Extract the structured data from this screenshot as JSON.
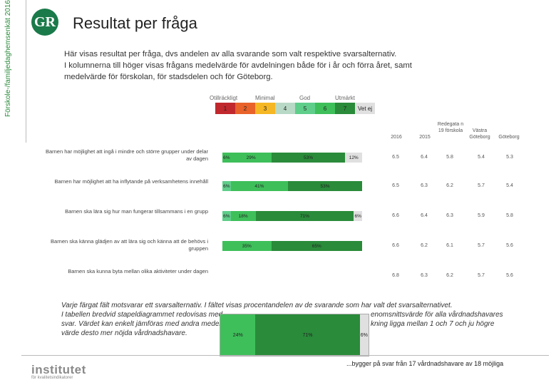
{
  "sidebar": {
    "vertical_title": "Förskole-/familjedaghemsenkät 2016"
  },
  "header": {
    "logo_text": "GR",
    "title": "Resultat per fråga"
  },
  "intro": [
    "Här visas resultat per fråga, dvs andelen av alla svarande som valt respektive svarsalternativ.",
    "I kolumnerna till höger visas frågans medelvärde för avdelningen både för i år och förra året, samt",
    "medelvärde för förskolan, för stadsdelen och för Göteborg."
  ],
  "legend": {
    "groups": [
      "Otillräckligt",
      "Minimal",
      "God",
      "Utmärkt"
    ],
    "items": [
      {
        "label": "1",
        "color": "#c0282d"
      },
      {
        "label": "2",
        "color": "#e8622a"
      },
      {
        "label": "3",
        "color": "#f5b724"
      },
      {
        "label": "4",
        "color": "#b8d9c6"
      },
      {
        "label": "5",
        "color": "#5fce8a"
      },
      {
        "label": "6",
        "color": "#3ebf5a"
      },
      {
        "label": "7",
        "color": "#2a8b3a"
      },
      {
        "label": "Vet ej",
        "color": "#e0e0e0"
      }
    ]
  },
  "columns": {
    "c2016": "2016",
    "c2015": "2015",
    "c_forskola": "Redegata n 19 förskola",
    "c_stadsdel": "Västra Göteborg",
    "c_goteborg": "Göteborg"
  },
  "questions": [
    {
      "label": "Barnen har möjlighet att ingå i mindre och större grupper under delar av dagen",
      "segments": [
        {
          "pct": 6,
          "text": "6%",
          "color": "#3ebf5a"
        },
        {
          "pct": 29,
          "text": "29%",
          "color": "#3ebf5a"
        },
        {
          "pct": 53,
          "text": "53%",
          "color": "#2a8b3a"
        },
        {
          "pct": 12,
          "text": "12%",
          "color": "#e0e0e0"
        }
      ],
      "values": [
        "6.5",
        "6.4",
        "5.8",
        "5.4",
        "5.3"
      ]
    },
    {
      "label": "Barnen har möjlighet att ha inflytande på verksamhetens innehåll",
      "segments": [
        {
          "pct": 6,
          "text": "6%",
          "color": "#5fce8a"
        },
        {
          "pct": 41,
          "text": "41%",
          "color": "#3ebf5a"
        },
        {
          "pct": 53,
          "text": "53%",
          "color": "#2a8b3a"
        }
      ],
      "values": [
        "6.5",
        "6.3",
        "6.2",
        "5.7",
        "5.4"
      ]
    },
    {
      "label": "Barnen ska lära sig hur man fungerar tillsammans i en grupp",
      "segments": [
        {
          "pct": 6,
          "text": "6%",
          "color": "#5fce8a"
        },
        {
          "pct": 18,
          "text": "18%",
          "color": "#3ebf5a"
        },
        {
          "pct": 71,
          "text": "71%",
          "color": "#2a8b3a"
        },
        {
          "pct": 6,
          "text": "6%",
          "color": "#e0e0e0"
        }
      ],
      "values": [
        "6.6",
        "6.4",
        "6.3",
        "5.9",
        "5.8"
      ]
    },
    {
      "label": "Barnen ska känna glädjen av att lära sig och känna att de behövs i gruppen",
      "segments": [
        {
          "pct": 35,
          "text": "35%",
          "color": "#3ebf5a"
        },
        {
          "pct": 65,
          "text": "65%",
          "color": "#2a8b3a"
        }
      ],
      "values": [
        "6.6",
        "6.2",
        "6.1",
        "5.7",
        "5.6"
      ]
    },
    {
      "label": "Barnen ska kunna byta mellan olika aktiviteter under dagen",
      "segments": [],
      "values": [
        "6.8",
        "6.3",
        "6.2",
        "5.7",
        "5.6"
      ]
    }
  ],
  "popup_bar": [
    {
      "pct": 24,
      "text": "24%",
      "color": "#3ebf5a"
    },
    {
      "pct": 71,
      "text": "71%",
      "color": "#2a8b3a"
    },
    {
      "pct": 6,
      "text": "6%",
      "color": "#e0e0e0"
    }
  ],
  "footer": [
    "Varje färgat fält motsvarar ett svarsalternativ. I fältet visas procentandelen av de svarande som har valt det svarsalternativet.",
    "I tabellen bredvid stapeldiagrammet redovisas med",
    "svar. Värdet kan enkelt jämföras med andra medelv",
    "värde desto mer nöjda vårdnadshavare."
  ],
  "footer_right": [
    "enomsnittsvärde för alla vårdnadshavares",
    "kning ligga mellan 1 och 7 och ju högre"
  ],
  "bottom_text": "...bygger på svar från 17 vårdnadshavare av 18 möjliga",
  "brand": {
    "name": "institutet",
    "sub": "för kvalitetsindikatorer"
  }
}
